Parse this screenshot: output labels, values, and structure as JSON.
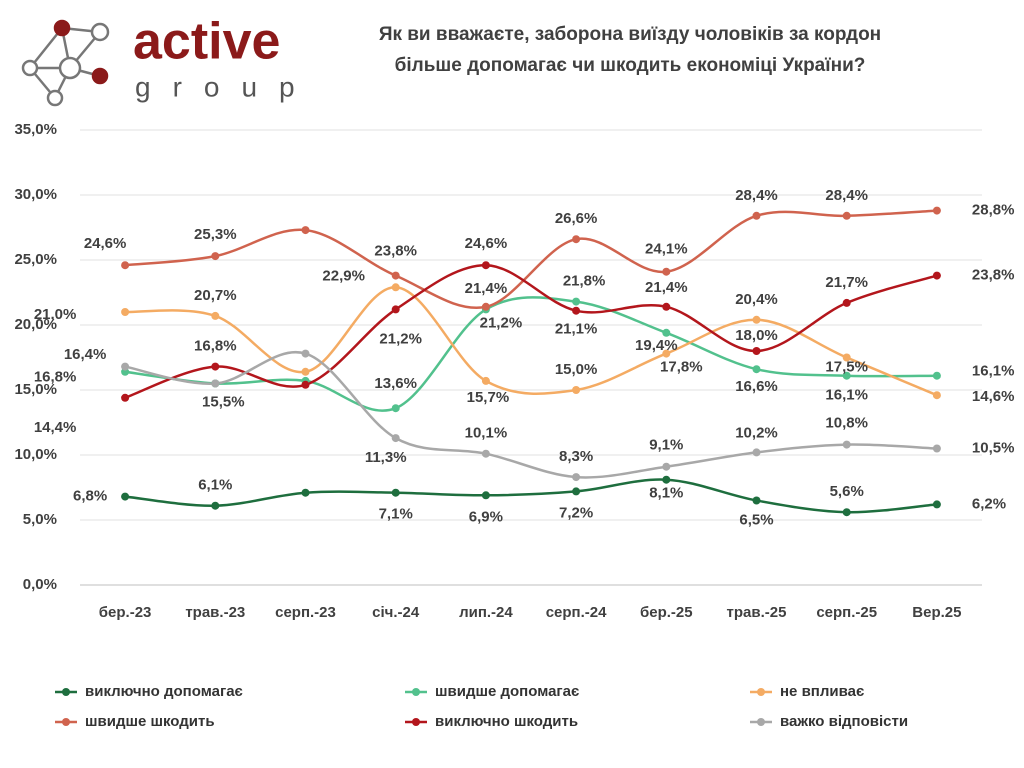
{
  "logo": {
    "brand": "active",
    "sub": "group"
  },
  "chart_data": {
    "type": "line",
    "title": [
      "Як ви вважаєте, заборона виїзду чоловіків за кордон",
      "більше допомагає чи шкодить економіці України?"
    ],
    "categories": [
      "бер.-23",
      "трав.-23",
      "серп.-23",
      "січ.-24",
      "лип.-24",
      "серп.-24",
      "бер.-25",
      "трав.-25",
      "серп.-25",
      "Вер.25"
    ],
    "ylim": [
      0,
      35
    ],
    "yticks": [
      {
        "value": 0,
        "label": "0,0%"
      },
      {
        "value": 5,
        "label": "5,0%"
      },
      {
        "value": 10,
        "label": "10,0%"
      },
      {
        "value": 15,
        "label": "15,0%"
      },
      {
        "value": 20,
        "label": "20,0%"
      },
      {
        "value": 25,
        "label": "25,0%"
      },
      {
        "value": 30,
        "label": "30,0%"
      },
      {
        "value": 35,
        "label": "35,0%"
      }
    ],
    "grid": true,
    "legend": "bottom",
    "series": [
      {
        "name": "виключно допомагає",
        "color": "#1e6e3e",
        "values": [
          6.8,
          6.1,
          7.1,
          7.1,
          6.9,
          7.2,
          8.1,
          6.5,
          5.6,
          6.2
        ],
        "value_labels": [
          "6,8%",
          "6,1%",
          null,
          "7,1%",
          "6,9%",
          "7,2%",
          "8,1%",
          "6,5%",
          "5,6%",
          "6,2%"
        ]
      },
      {
        "name": "швидше допомагає",
        "color": "#52c18d",
        "values": [
          16.4,
          15.5,
          15.7,
          13.6,
          21.2,
          21.8,
          19.4,
          16.6,
          16.1,
          16.1
        ],
        "value_labels": [
          "16,4%",
          null,
          null,
          "13,6%",
          "21,2%",
          "21,8%",
          "19,4%",
          "16,6%",
          "16,1%",
          "16,1%"
        ]
      },
      {
        "name": "не впливає",
        "color": "#f4ab63",
        "values": [
          21.0,
          20.7,
          16.4,
          22.9,
          15.7,
          15.0,
          17.8,
          20.4,
          17.5,
          14.6
        ],
        "value_labels": [
          "21,0%",
          "20,7%",
          null,
          "22,9%",
          "15,7%",
          "15,0%",
          "17,8%",
          "20,4%",
          "17,5%",
          "14,6%"
        ]
      },
      {
        "name": "швидше шкодить",
        "color": "#d0634e",
        "values": [
          24.6,
          25.3,
          27.3,
          23.8,
          21.4,
          26.6,
          24.1,
          28.4,
          28.4,
          28.8
        ],
        "value_labels": [
          "24,6%",
          "25,3%",
          null,
          "23,8%",
          "21,4%",
          "26,6%",
          "24,1%",
          "28,4%",
          "28,4%",
          "28,8%"
        ]
      },
      {
        "name": "виключно шкодить",
        "color": "#b3161c",
        "values": [
          14.4,
          16.8,
          15.4,
          21.2,
          24.6,
          21.1,
          21.4,
          18.0,
          21.7,
          23.8
        ],
        "value_labels": [
          "14,4%",
          "16,8%",
          null,
          "21,2%",
          "24,6%",
          "21,1%",
          "21,4%",
          "18,0%",
          "21,7%",
          "23,8%"
        ]
      },
      {
        "name": "важко відповісти",
        "color": "#a8a8a8",
        "values": [
          16.8,
          15.5,
          17.8,
          11.3,
          10.1,
          8.3,
          9.1,
          10.2,
          10.8,
          10.5
        ],
        "value_labels": [
          "16,8%",
          "15,5%",
          null,
          "11,3%",
          "10,1%",
          "8,3%",
          "9,1%",
          "10,2%",
          "10,8%",
          "10,5%"
        ]
      }
    ]
  }
}
